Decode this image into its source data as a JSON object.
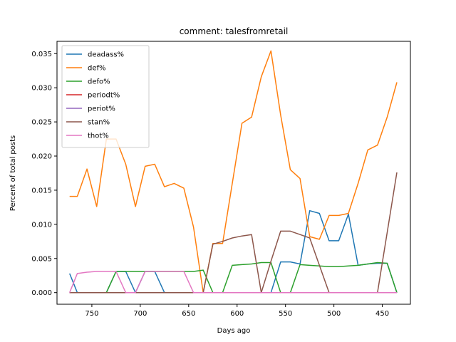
{
  "chart_data": {
    "type": "line",
    "title": "comment: talesfromretail",
    "xlabel": "Days ago",
    "ylabel": "Percent of total posts",
    "xlim": [
      786,
      421
    ],
    "ylim": [
      -0.0017,
      0.0368
    ],
    "x_ticks": [
      750,
      700,
      650,
      600,
      550,
      500,
      450
    ],
    "y_ticks": [
      0.0,
      0.005,
      0.01,
      0.015,
      0.02,
      0.025,
      0.03,
      0.035
    ],
    "y_tick_labels": [
      "0.000",
      "0.005",
      "0.010",
      "0.015",
      "0.020",
      "0.025",
      "0.030",
      "0.035"
    ],
    "legend_position": "top-left",
    "grid": false,
    "x": [
      773,
      765,
      755,
      745,
      735,
      725,
      715,
      705,
      695,
      685,
      675,
      665,
      655,
      645,
      635,
      625,
      615,
      605,
      595,
      585,
      575,
      565,
      555,
      545,
      535,
      525,
      515,
      505,
      495,
      485,
      475,
      465,
      455,
      445,
      435
    ],
    "series": [
      {
        "name": "deadass%",
        "color": "#1f77b4",
        "values": [
          0.0028,
          0,
          0,
          0,
          0,
          0.0031,
          0.0031,
          0,
          0.0031,
          0.0031,
          0,
          0,
          0,
          0,
          0,
          0,
          0,
          0,
          0,
          0,
          0,
          0,
          0.0045,
          0.0045,
          0.0042,
          0.012,
          0.0116,
          0.0076,
          0.0076,
          0.0115,
          0.004,
          0.0042,
          0.0043,
          0.0043,
          0
        ]
      },
      {
        "name": "def%",
        "color": "#ff7f0e",
        "values": [
          0.0141,
          0.0141,
          0.0181,
          0.0126,
          0.0225,
          0.0225,
          0.0188,
          0.0126,
          0.0185,
          0.0188,
          0.0155,
          0.016,
          0.0153,
          0.0096,
          0,
          0.0072,
          0.0072,
          0.016,
          0.0248,
          0.0257,
          0.0316,
          0.0354,
          0.026,
          0.018,
          0.0167,
          0.0082,
          0.0078,
          0.0113,
          0.0113,
          0.0116,
          0.016,
          0.0209,
          0.0216,
          0.0257,
          0.0308
        ]
      },
      {
        "name": "defo%",
        "color": "#2ca02c",
        "values": [
          0,
          0,
          0,
          0,
          0,
          0.0031,
          0.0031,
          0.0031,
          0.0031,
          0.0031,
          0.0031,
          0.0031,
          0.0031,
          0.0031,
          0.0033,
          0,
          0,
          0.004,
          0.0041,
          0.0042,
          0.0044,
          0.0044,
          0,
          0,
          0.0041,
          0.004,
          0.0039,
          0.0038,
          0.0038,
          0.0039,
          0.004,
          0.0042,
          0.0044,
          0.0043,
          0
        ]
      },
      {
        "name": "periodt%",
        "color": "#d62728",
        "values": [
          0,
          0,
          0,
          0,
          0,
          0,
          0,
          0,
          0,
          0,
          0,
          0,
          0,
          0,
          0,
          0,
          0,
          0,
          0,
          0,
          0,
          0,
          0,
          0,
          0,
          0,
          0,
          0,
          0,
          0,
          0,
          0,
          0,
          0,
          0
        ]
      },
      {
        "name": "periot%",
        "color": "#9467bd",
        "values": [
          0,
          0,
          0,
          0,
          0,
          0,
          0,
          0,
          0,
          0,
          0,
          0,
          0,
          0,
          0,
          0,
          0,
          0,
          0,
          0,
          0,
          0,
          0,
          0,
          0,
          0,
          0,
          0,
          0,
          0,
          0,
          0,
          0,
          0,
          0
        ]
      },
      {
        "name": "stan%",
        "color": "#8c564b",
        "values": [
          0,
          0,
          0,
          0,
          0,
          0,
          0,
          0,
          0,
          0,
          0,
          0,
          0,
          0,
          0,
          0.0071,
          0.0075,
          0.008,
          0.0083,
          0.0085,
          0,
          0.0046,
          0.009,
          0.009,
          0.0085,
          0.008,
          0.004,
          0,
          0,
          0,
          0,
          0,
          0,
          0.0088,
          0.0176
        ]
      },
      {
        "name": "thot%",
        "color": "#e377c2",
        "values": [
          0,
          0.0028,
          0.003,
          0.0031,
          0.0031,
          0.0031,
          0,
          0,
          0.0031,
          0.0031,
          0.0031,
          0.0031,
          0.0031,
          0,
          0,
          0,
          0,
          0,
          0,
          0,
          0,
          0,
          0,
          0,
          0,
          0,
          0,
          0,
          0,
          0,
          0,
          0,
          0,
          0,
          0
        ]
      }
    ]
  }
}
